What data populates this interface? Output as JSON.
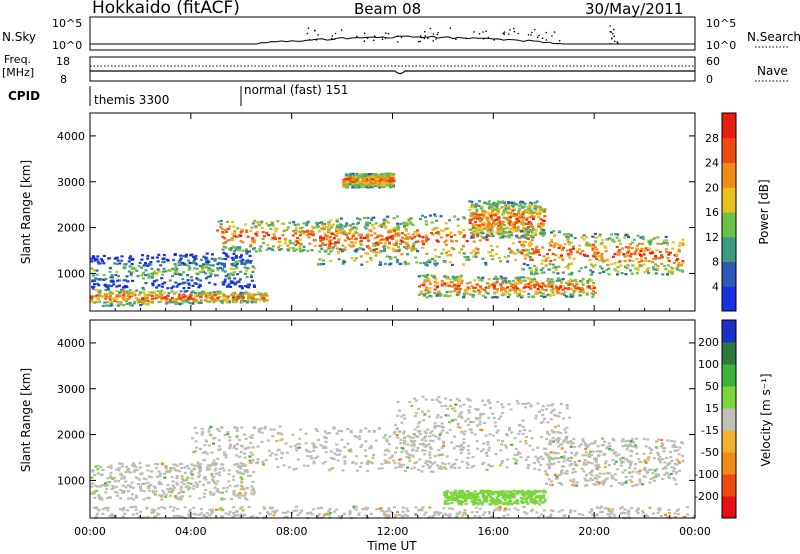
{
  "header": {
    "station": "Hokkaido (fitACF)",
    "beam": "Beam 08",
    "date": "30/May/2011"
  },
  "strip": {
    "nsky_label": "N.Sky",
    "nsky_ticks": [
      "10^5",
      "10^0"
    ],
    "nsearch_label": "N.Search",
    "nsearch_ticks": [
      "10^5",
      "10^0"
    ],
    "freq_label_1": "Freq.",
    "freq_label_2": "[MHz]",
    "freq_ticks": [
      "18",
      "8"
    ],
    "nave_label": "Nave",
    "nave_ticks": [
      "60",
      "0"
    ],
    "cpid_label": "CPID",
    "cpid_segments": [
      {
        "name": "themis 3300",
        "start_hour": 0,
        "end_hour": 6
      },
      {
        "name": "normal (fast) 151",
        "start_hour": 6,
        "end_hour": 24
      }
    ]
  },
  "chart_data": [
    {
      "type": "heatmap",
      "title": "",
      "xlabel": "Time UT",
      "ylabel": "Slant Range [km]",
      "xlim_hours": [
        0,
        24
      ],
      "ylim": [
        180,
        4500
      ],
      "x_ticks": [
        "00:00",
        "04:00",
        "08:00",
        "12:00",
        "16:00",
        "20:00",
        "00:00"
      ],
      "y_ticks": [
        1000,
        2000,
        3000,
        4000
      ],
      "colorbar": {
        "label": "Power [dB]",
        "ticks": [
          4,
          8,
          12,
          16,
          20,
          24,
          28
        ],
        "colors": [
          "#1530e0",
          "#2c5ab8",
          "#3f9a82",
          "#6ac24a",
          "#e8c020",
          "#f08a18",
          "#f04a10",
          "#e81e10"
        ]
      }
    },
    {
      "type": "heatmap",
      "title": "",
      "xlabel": "Time UT",
      "ylabel": "Slant Range [km]",
      "xlim_hours": [
        0,
        24
      ],
      "ylim": [
        180,
        4500
      ],
      "x_ticks": [
        "00:00",
        "04:00",
        "08:00",
        "12:00",
        "16:00",
        "20:00",
        "00:00"
      ],
      "y_ticks": [
        1000,
        2000,
        3000,
        4000
      ],
      "colorbar": {
        "label": "Velocity [m s⁻¹]",
        "ticks": [
          200,
          100,
          50,
          15,
          -15,
          -50,
          -100,
          -200
        ],
        "colors": [
          "#1a2ec8",
          "#2c7a3c",
          "#3cb43c",
          "#7ad63a",
          "#c0c0b8",
          "#f0b030",
          "#f08a18",
          "#f04a10",
          "#e81010"
        ]
      }
    }
  ],
  "colors": {
    "ground_scatter": "#bdbdb5",
    "axis": "#000000"
  }
}
